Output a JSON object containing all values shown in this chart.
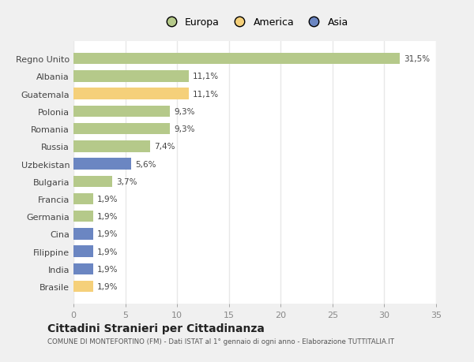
{
  "categories": [
    "Brasile",
    "India",
    "Filippine",
    "Cina",
    "Germania",
    "Francia",
    "Bulgaria",
    "Uzbekistan",
    "Russia",
    "Romania",
    "Polonia",
    "Guatemala",
    "Albania",
    "Regno Unito"
  ],
  "values": [
    1.9,
    1.9,
    1.9,
    1.9,
    1.9,
    1.9,
    3.7,
    5.6,
    7.4,
    9.3,
    9.3,
    11.1,
    11.1,
    31.5
  ],
  "labels": [
    "1,9%",
    "1,9%",
    "1,9%",
    "1,9%",
    "1,9%",
    "1,9%",
    "3,7%",
    "5,6%",
    "7,4%",
    "9,3%",
    "9,3%",
    "11,1%",
    "11,1%",
    "31,5%"
  ],
  "colors": [
    "#f5d07a",
    "#6b86c2",
    "#6b86c2",
    "#6b86c2",
    "#b5c98a",
    "#b5c98a",
    "#b5c98a",
    "#6b86c2",
    "#b5c98a",
    "#b5c98a",
    "#b5c98a",
    "#f5d07a",
    "#b5c98a",
    "#b5c98a"
  ],
  "legend": [
    {
      "label": "Europa",
      "color": "#b5c98a"
    },
    {
      "label": "America",
      "color": "#f5d07a"
    },
    {
      "label": "Asia",
      "color": "#6b86c2"
    }
  ],
  "xlim": [
    0,
    35
  ],
  "xticks": [
    0,
    5,
    10,
    15,
    20,
    25,
    30,
    35
  ],
  "title": "Cittadini Stranieri per Cittadinanza",
  "subtitle": "COMUNE DI MONTEFORTINO (FM) - Dati ISTAT al 1° gennaio di ogni anno - Elaborazione TUTTITALIA.IT",
  "bg_color": "#f0f0f0",
  "plot_bg_color": "#ffffff",
  "grid_color": "#e8e8e8",
  "bar_height": 0.65
}
